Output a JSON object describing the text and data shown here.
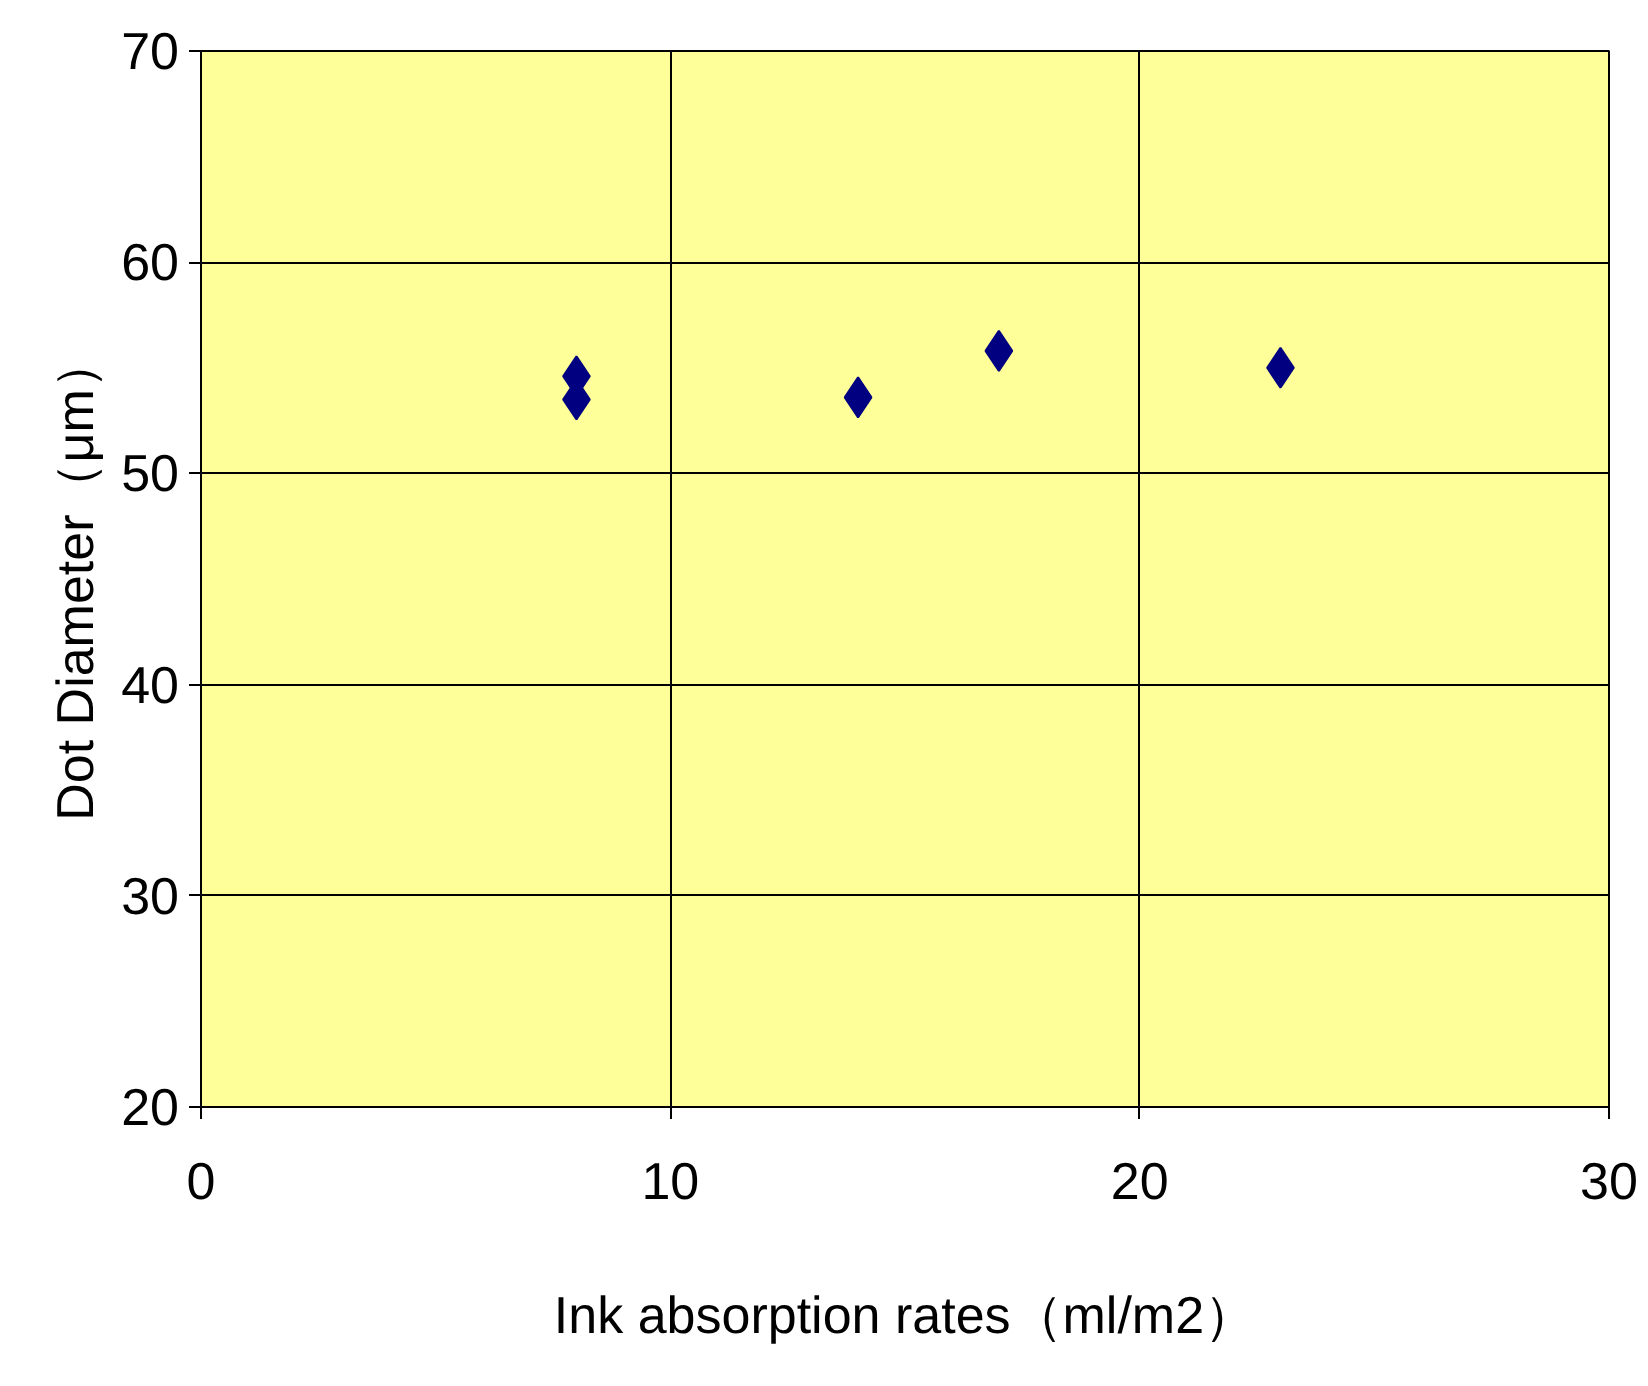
{
  "chart_data": {
    "type": "scatter",
    "xlabel": "Ink absorption rates（ml/m2）",
    "ylabel": "Dot Diameter（μm）",
    "x": [
      8,
      8,
      14,
      17,
      23
    ],
    "series": [
      {
        "color": "#000080",
        "values": [
          54.6,
          53.5,
          53.6,
          55.8,
          55.0
        ]
      }
    ],
    "xlim": [
      0,
      30
    ],
    "ylim": [
      20,
      70
    ],
    "xticks": [
      0,
      10,
      20,
      30
    ],
    "yticks": [
      20,
      30,
      40,
      50,
      60,
      70
    ],
    "grid": true,
    "marker": "diamond"
  }
}
